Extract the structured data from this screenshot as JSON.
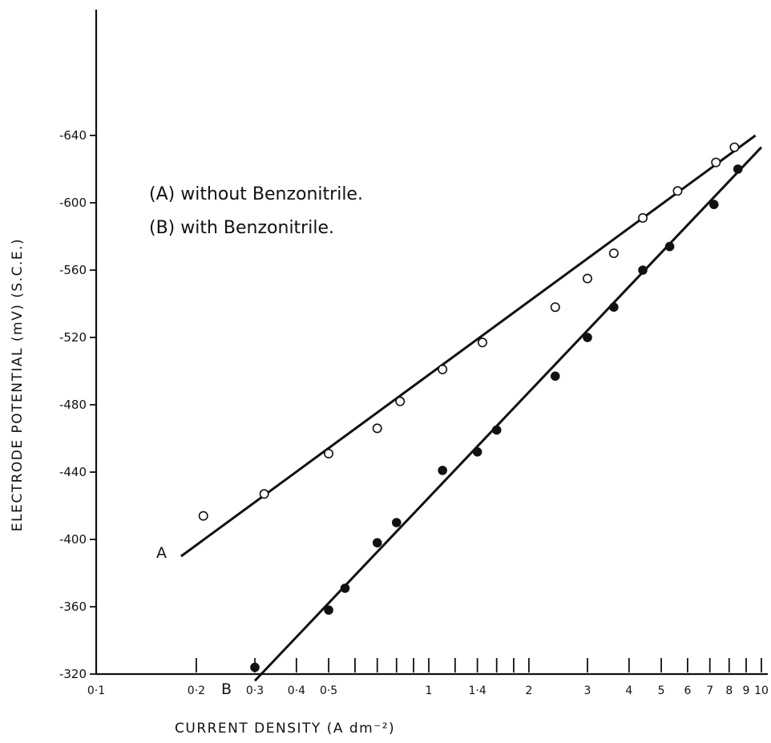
{
  "chart_data": {
    "type": "scatter",
    "title": "",
    "xlabel": "CURRENT  DENSITY (A dm⁻²)",
    "ylabel": "ELECTRODE POTENTIAL (mV)  (S.C.E.)",
    "xscale": "log",
    "xlim": [
      0.1,
      10
    ],
    "ylim": [
      320,
      680
    ],
    "x_ticks": [
      0.2,
      0.3,
      0.4,
      0.5,
      0.6,
      0.7,
      0.8,
      0.9,
      1,
      1.2,
      1.4,
      1.6,
      1.8,
      2,
      3,
      4,
      5,
      6,
      7,
      8,
      9,
      10
    ],
    "x_tick_labels": [
      {
        "value": 0.1,
        "label": "0·1"
      },
      {
        "value": 0.2,
        "label": "0·2"
      },
      {
        "value": 0.3,
        "label": "0·3"
      },
      {
        "value": 0.4,
        "label": "0·4"
      },
      {
        "value": 0.5,
        "label": "0·5"
      },
      {
        "value": 1,
        "label": "1"
      },
      {
        "value": 1.4,
        "label": "1·4"
      },
      {
        "value": 2,
        "label": "2"
      },
      {
        "value": 3,
        "label": "3"
      },
      {
        "value": 4,
        "label": "4"
      },
      {
        "value": 5,
        "label": "5"
      },
      {
        "value": 6,
        "label": "6"
      },
      {
        "value": 7,
        "label": "7"
      },
      {
        "value": 8,
        "label": "8"
      },
      {
        "value": 9,
        "label": "9"
      },
      {
        "value": 10,
        "label": "10"
      }
    ],
    "y_ticks": [
      {
        "value": 320,
        "label": "-320"
      },
      {
        "value": 360,
        "label": "-360"
      },
      {
        "value": 400,
        "label": "-400"
      },
      {
        "value": 440,
        "label": "-440"
      },
      {
        "value": 480,
        "label": "-480"
      },
      {
        "value": 520,
        "label": "-520"
      },
      {
        "value": 560,
        "label": "-560"
      },
      {
        "value": 600,
        "label": "-600"
      },
      {
        "value": 640,
        "label": "-640"
      }
    ],
    "grid": false,
    "legend": {
      "placement": "upper-left",
      "entries": [
        "(A) without Benzonitrile.",
        "(B) with Benzonitrile."
      ]
    },
    "series": [
      {
        "name": "A",
        "marker": "open-circle",
        "points": [
          {
            "x": 0.21,
            "y": 414
          },
          {
            "x": 0.32,
            "y": 427
          },
          {
            "x": 0.5,
            "y": 451
          },
          {
            "x": 0.7,
            "y": 466
          },
          {
            "x": 0.82,
            "y": 482
          },
          {
            "x": 1.1,
            "y": 501
          },
          {
            "x": 1.45,
            "y": 517
          },
          {
            "x": 2.4,
            "y": 538
          },
          {
            "x": 3.0,
            "y": 555
          },
          {
            "x": 3.6,
            "y": 570
          },
          {
            "x": 4.4,
            "y": 591
          },
          {
            "x": 5.6,
            "y": 607
          },
          {
            "x": 7.3,
            "y": 624
          },
          {
            "x": 8.3,
            "y": 633
          }
        ],
        "fit": {
          "x1": 0.18,
          "y1": 390,
          "x2": 9.6,
          "y2": 640
        }
      },
      {
        "name": "B",
        "marker": "filled-circle",
        "points": [
          {
            "x": 0.3,
            "y": 324
          },
          {
            "x": 0.5,
            "y": 358
          },
          {
            "x": 0.56,
            "y": 371
          },
          {
            "x": 0.7,
            "y": 398
          },
          {
            "x": 0.8,
            "y": 410
          },
          {
            "x": 1.1,
            "y": 441
          },
          {
            "x": 1.4,
            "y": 452
          },
          {
            "x": 1.6,
            "y": 465
          },
          {
            "x": 2.4,
            "y": 497
          },
          {
            "x": 3.0,
            "y": 520
          },
          {
            "x": 3.6,
            "y": 538
          },
          {
            "x": 4.4,
            "y": 560
          },
          {
            "x": 5.3,
            "y": 574
          },
          {
            "x": 7.2,
            "y": 599
          },
          {
            "x": 8.5,
            "y": 620
          }
        ],
        "fit": {
          "x1": 0.3,
          "y1": 316,
          "x2": 10,
          "y2": 633
        }
      }
    ]
  }
}
